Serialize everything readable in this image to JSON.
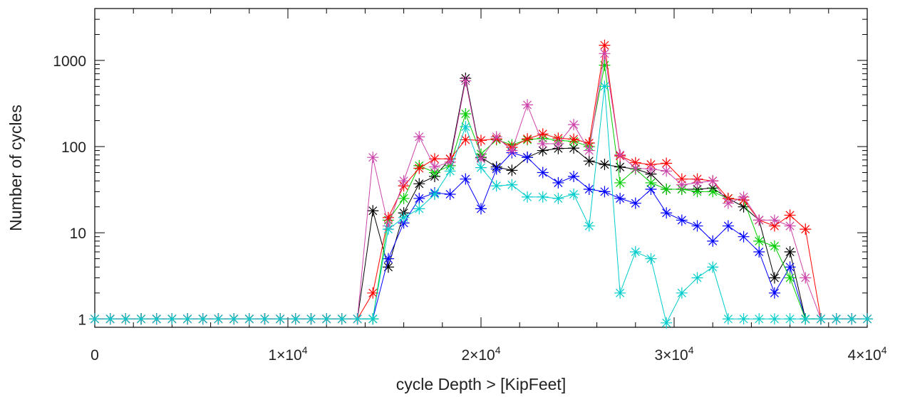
{
  "chart_data": {
    "type": "line",
    "title": "",
    "xlabel": "cycle Depth > [KipFeet]",
    "ylabel": "Number of cycles",
    "xscale": "linear",
    "yscale": "log",
    "xlim": [
      0,
      40000
    ],
    "ylim": [
      0.8,
      4000
    ],
    "marker": "asterisk",
    "grid": false,
    "x_ticks": [
      {
        "value": 0,
        "label": "0",
        "sup": ""
      },
      {
        "value": 10000,
        "label": "1×10",
        "sup": "4"
      },
      {
        "value": 20000,
        "label": "2×10",
        "sup": "4"
      },
      {
        "value": 30000,
        "label": "3×10",
        "sup": "4"
      },
      {
        "value": 40000,
        "label": "4×10",
        "sup": "4"
      }
    ],
    "y_ticks": [
      {
        "value": 1,
        "label": "1"
      },
      {
        "value": 10,
        "label": "10"
      },
      {
        "value": 100,
        "label": "100"
      },
      {
        "value": 1000,
        "label": "1000"
      }
    ],
    "x": [
      0,
      800,
      1600,
      2400,
      3200,
      4000,
      4800,
      5600,
      6400,
      7200,
      8000,
      8800,
      9600,
      10400,
      11200,
      12000,
      12800,
      13600,
      14400,
      15200,
      16000,
      16800,
      17600,
      18400,
      19200,
      20000,
      20800,
      21600,
      22400,
      23200,
      24000,
      24800,
      25600,
      26400,
      27200,
      28000,
      28800,
      29600,
      30400,
      31200,
      32000,
      32800,
      33600,
      34400,
      35200,
      36000,
      36800,
      37600,
      38400,
      39200,
      40000
    ],
    "series": [
      {
        "color": "#000000",
        "values": [
          1,
          1,
          1,
          1,
          1,
          1,
          1,
          1,
          1,
          1,
          1,
          1,
          1,
          1,
          1,
          1,
          1,
          1,
          18,
          4,
          17,
          37,
          45,
          72,
          620,
          75,
          58,
          53,
          75,
          90,
          95,
          96,
          68,
          62,
          58,
          55,
          48,
          32,
          32,
          32,
          33,
          25,
          20,
          14,
          3,
          6,
          1,
          1,
          1,
          1,
          1
        ]
      },
      {
        "color": "#0000ff",
        "values": [
          1,
          1,
          1,
          1,
          1,
          1,
          1,
          1,
          1,
          1,
          1,
          1,
          1,
          1,
          1,
          1,
          1,
          1,
          1,
          5,
          13,
          25,
          29,
          28,
          42,
          19,
          55,
          85,
          75,
          50,
          38,
          45,
          32,
          30,
          25,
          22,
          32,
          17,
          14,
          12,
          8,
          12,
          9,
          6,
          2,
          4,
          1,
          1,
          1,
          1,
          1
        ]
      },
      {
        "color": "#00cc00",
        "values": [
          1,
          1,
          1,
          1,
          1,
          1,
          1,
          1,
          1,
          1,
          1,
          1,
          1,
          1,
          1,
          1,
          1,
          1,
          1,
          14,
          25,
          60,
          50,
          60,
          240,
          82,
          120,
          105,
          120,
          125,
          118,
          115,
          100,
          880,
          38,
          55,
          38,
          32,
          32,
          30,
          30,
          25,
          24,
          8,
          7,
          3,
          1,
          1,
          1,
          1,
          1
        ]
      },
      {
        "color": "#ff0000",
        "values": [
          1,
          1,
          1,
          1,
          1,
          1,
          1,
          1,
          1,
          1,
          1,
          1,
          1,
          1,
          1,
          1,
          1,
          1,
          2,
          15,
          35,
          56,
          72,
          72,
          120,
          118,
          123,
          98,
          123,
          140,
          125,
          122,
          110,
          1500,
          78,
          65,
          62,
          64,
          42,
          42,
          40,
          25,
          24,
          14,
          12,
          16,
          11,
          1,
          1,
          1,
          1
        ]
      },
      {
        "color": "#cc44aa",
        "values": [
          1,
          1,
          1,
          1,
          1,
          1,
          1,
          1,
          1,
          1,
          1,
          1,
          1,
          1,
          1,
          1,
          1,
          1,
          75,
          12,
          40,
          130,
          58,
          66,
          580,
          72,
          130,
          90,
          305,
          108,
          108,
          180,
          90,
          1200,
          80,
          56,
          55,
          52,
          36,
          38,
          40,
          22,
          26,
          14,
          14,
          12,
          3,
          1,
          1,
          1,
          1
        ]
      },
      {
        "color": "#00cccc",
        "values": [
          1,
          1,
          1,
          1,
          1,
          1,
          1,
          1,
          1,
          1,
          1,
          1,
          1,
          1,
          1,
          1,
          1,
          1,
          1,
          11,
          15,
          19,
          28,
          52,
          170,
          57,
          35,
          36,
          26,
          26,
          25,
          28,
          12,
          500,
          2,
          6,
          5,
          0.9,
          2,
          3,
          4,
          1,
          1,
          1,
          1,
          1,
          1,
          1,
          1,
          1,
          1
        ]
      }
    ]
  }
}
